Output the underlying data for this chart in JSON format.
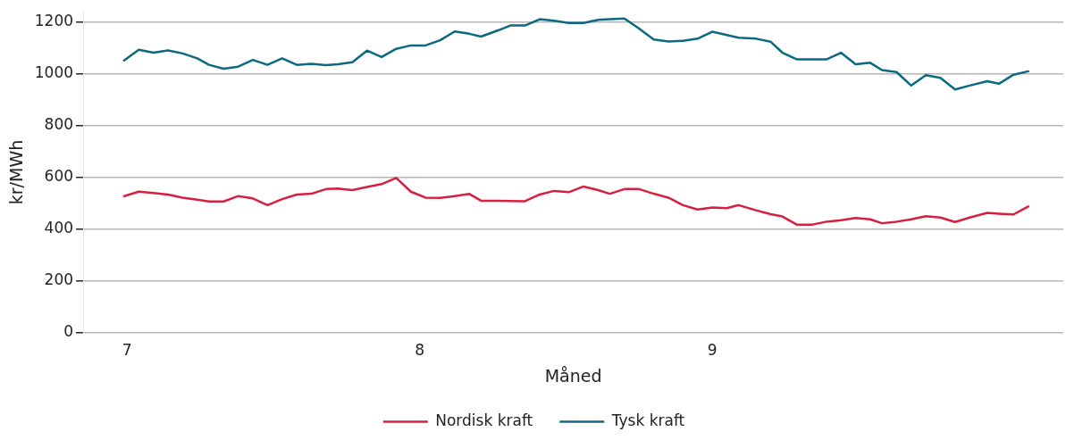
{
  "chart_data": {
    "type": "line",
    "xlabel": "Måned",
    "ylabel": "kr/MWh",
    "x": [
      6.99,
      7.04,
      7.09,
      7.14,
      7.19,
      7.24,
      7.28,
      7.33,
      7.38,
      7.43,
      7.48,
      7.53,
      7.58,
      7.63,
      7.68,
      7.72,
      7.77,
      7.82,
      7.87,
      7.92,
      7.97,
      8.02,
      8.07,
      8.12,
      8.17,
      8.21,
      8.27,
      8.31,
      8.36,
      8.41,
      8.46,
      8.51,
      8.56,
      8.61,
      8.65,
      8.7,
      8.75,
      8.8,
      8.85,
      8.9,
      8.95,
      9.0,
      9.05,
      9.09,
      9.15,
      9.2,
      9.24,
      9.29,
      9.34,
      9.39,
      9.44,
      9.49,
      9.54,
      9.58,
      9.63,
      9.68,
      9.73,
      9.78,
      9.83,
      9.88,
      9.94,
      9.98,
      10.03,
      10.08
    ],
    "series": [
      {
        "name": "Nordisk kraft",
        "color": "#d71f40",
        "values": [
          528,
          545,
          540,
          534,
          522,
          514,
          507,
          507,
          528,
          519,
          493,
          516,
          534,
          537,
          555,
          557,
          551,
          563,
          574,
          598,
          545,
          522,
          521,
          528,
          536,
          510,
          510,
          509,
          508,
          534,
          548,
          543,
          565,
          551,
          537,
          555,
          555,
          537,
          522,
          493,
          476,
          484,
          481,
          493,
          473,
          458,
          449,
          417,
          417,
          429,
          435,
          443,
          438,
          423,
          429,
          438,
          450,
          445,
          428,
          445,
          463,
          460,
          457,
          488
        ]
      },
      {
        "name": "Tysk kraft",
        "color": "#0b6a80",
        "values": [
          1052,
          1093,
          1082,
          1091,
          1079,
          1060,
          1035,
          1020,
          1028,
          1054,
          1035,
          1060,
          1035,
          1039,
          1034,
          1037,
          1045,
          1090,
          1065,
          1097,
          1110,
          1110,
          1130,
          1164,
          1155,
          1144,
          1169,
          1187,
          1187,
          1211,
          1205,
          1197,
          1197,
          1209,
          1211,
          1214,
          1175,
          1133,
          1125,
          1128,
          1136,
          1163,
          1150,
          1140,
          1136,
          1124,
          1082,
          1056,
          1056,
          1056,
          1082,
          1037,
          1043,
          1015,
          1007,
          955,
          995,
          985,
          940,
          955,
          972,
          962,
          997,
          1010
        ]
      }
    ],
    "xlim": [
      6.85,
      10.2
    ],
    "xticks": [
      7,
      8,
      9
    ],
    "ylim": [
      0,
      1240
    ],
    "yticks": [
      0,
      200,
      400,
      600,
      800,
      1000,
      1200
    ],
    "grid": "y",
    "legend": "bottom",
    "marker": "none",
    "line_style": "solid"
  }
}
